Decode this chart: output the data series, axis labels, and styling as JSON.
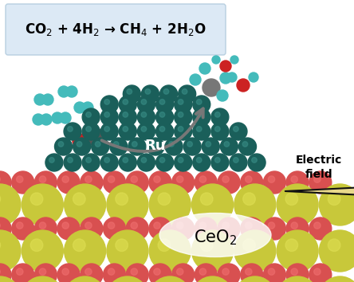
{
  "title_box_text": "CO$_2$ + 4H$_2$ → CH$_4$ + 2H$_2$O",
  "title_box_color": "#dce9f5",
  "title_box_border": "#b8cfe0",
  "bg_color": "#ffffff",
  "ru_label": "Ru",
  "ceo2_label": "CeO$_2$",
  "electric_field_label": "Electric\nfield",
  "ru_color": "#1a5f5a",
  "ru_color_light": "#3a8f88",
  "ceo2_yellow": "#c8c83a",
  "ceo2_yellow_light": "#e0e055",
  "ceo2_red": "#d85050",
  "ceo2_red_light": "#f07070",
  "arrow_color": "#777777",
  "electric_arrow_fill": "#e8d88a",
  "electric_arrow_border": "#111111",
  "h2_color": "#44bbbb",
  "co2_gray": "#555555",
  "co2_red": "#cc2222",
  "ch4_gray": "#777777",
  "ch4_cyan": "#44bbbb",
  "h2o_cyan": "#44bbbb",
  "h2o_red": "#cc2222"
}
